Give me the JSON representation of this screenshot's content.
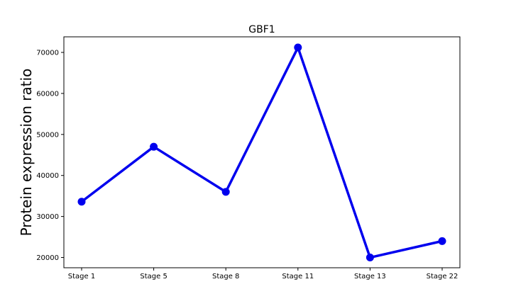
{
  "chart_data": {
    "type": "line",
    "title": "GBF1",
    "xlabel": "",
    "ylabel": "Protein expression ratio",
    "categories": [
      "Stage 1",
      "Stage 5",
      "Stage 8",
      "Stage 11",
      "Stage 13",
      "Stage 22"
    ],
    "series": [
      {
        "values": [
          33600,
          47000,
          36000,
          71200,
          20000,
          24000
        ]
      }
    ],
    "yticks": [
      20000,
      30000,
      40000,
      50000,
      60000,
      70000
    ],
    "ylim": [
      17500,
      73800
    ],
    "grid": false,
    "legend": "none",
    "colors": {
      "line": "#0000ee",
      "axis": "#000000"
    }
  }
}
